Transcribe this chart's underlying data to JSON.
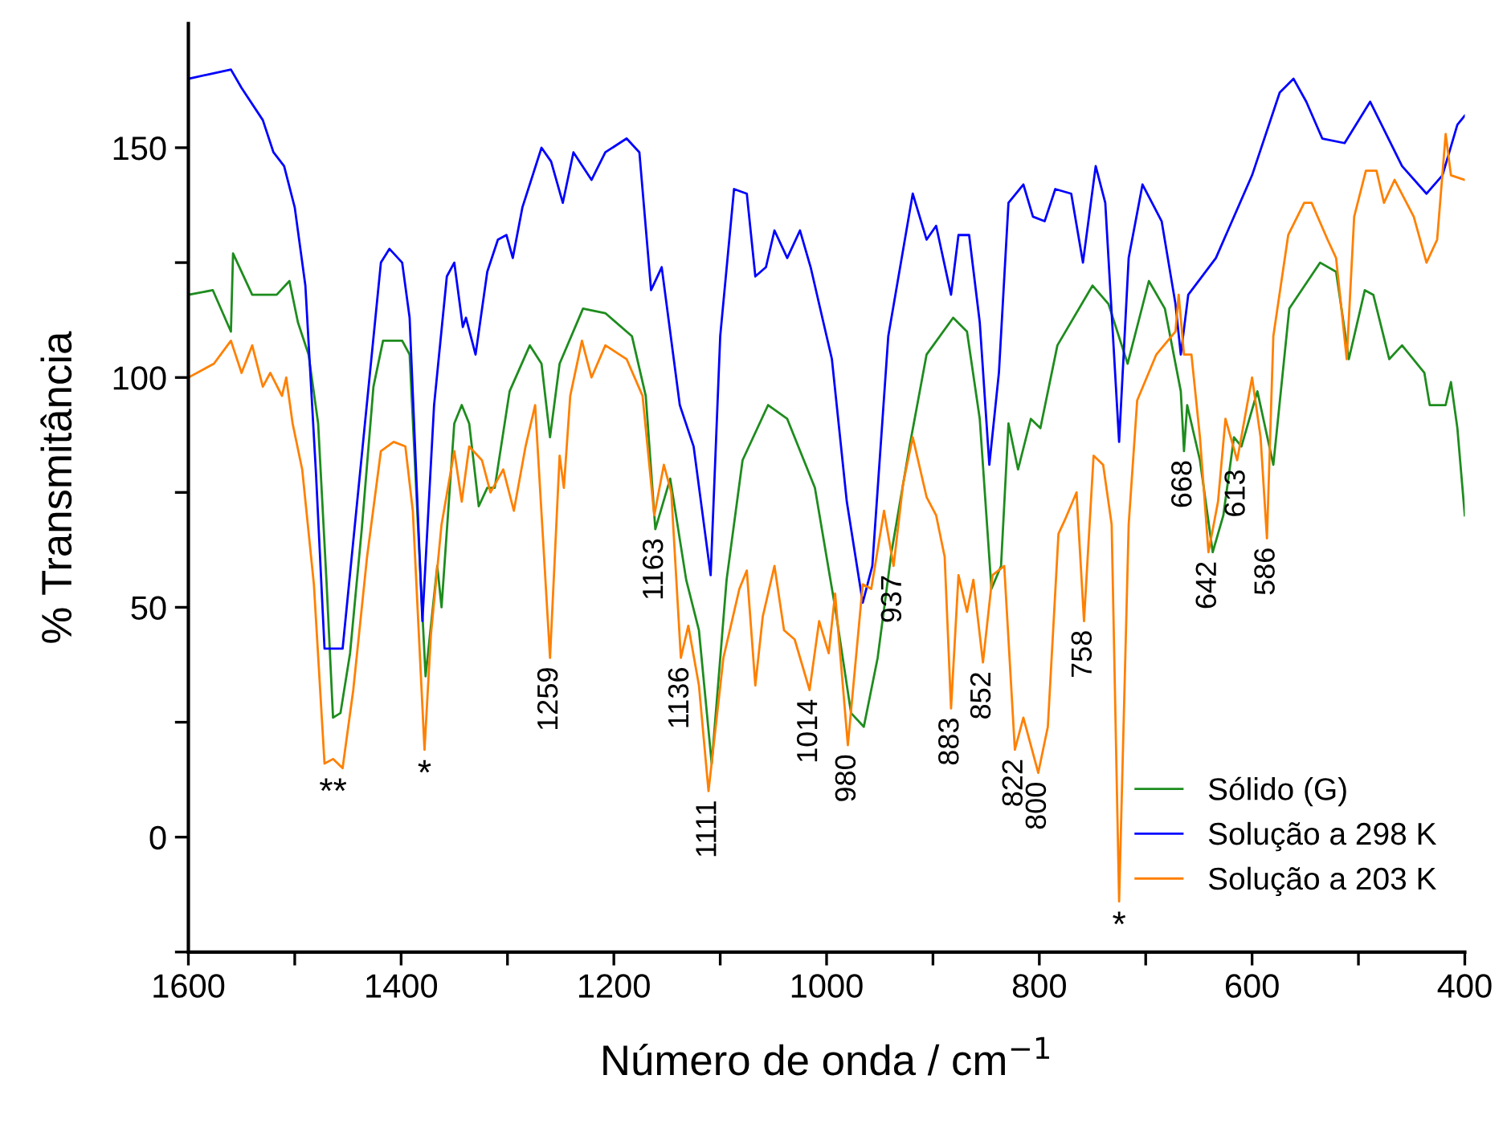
{
  "chart_data": {
    "type": "line",
    "xlabel": "Número de onda / cm$^{−1}$",
    "ylabel": "% Transmitância",
    "xlim": [
      1600,
      400
    ],
    "xticks": [
      1600,
      {
        "value": 1500,
        "label": null
      },
      1400,
      {
        "value": 1300,
        "label": null
      },
      1200,
      {
        "value": 1100,
        "label": null
      },
      1000,
      {
        "value": 900,
        "label": null
      },
      800,
      {
        "value": 700,
        "label": null
      },
      600,
      {
        "value": 500,
        "label": null
      },
      400
    ],
    "ylim": [
      -25,
      177
    ],
    "yticks": [
      {
        "value": -25,
        "label": null
      },
      0,
      {
        "value": 25,
        "label": null
      },
      50,
      {
        "value": 75,
        "label": null
      },
      100,
      {
        "value": 125,
        "label": null
      },
      150
    ],
    "grid": false,
    "legend": "bottom right",
    "marker": "none",
    "line_style": "solid",
    "series": [
      {
        "name": "Sólido (G)",
        "color": "#1e8c1e",
        "x": [
          1600,
          1577,
          1560,
          1558,
          1540,
          1517,
          1505,
          1497,
          1487,
          1478,
          1470,
          1464,
          1457,
          1448,
          1437,
          1426,
          1417,
          1399,
          1392,
          1384,
          1377,
          1366,
          1362,
          1350,
          1343,
          1336,
          1327,
          1319,
          1312,
          1298,
          1279,
          1268,
          1260,
          1251,
          1229,
          1208,
          1183,
          1170,
          1161,
          1147,
          1132,
          1120,
          1108,
          1094,
          1079,
          1055,
          1037,
          1011,
          992,
          977,
          965,
          952,
          939,
          922,
          906,
          881,
          868,
          856,
          845,
          836,
          829,
          820,
          808,
          799,
          783,
          750,
          735,
          717,
          697,
          682,
          667,
          664,
          661,
          649,
          637,
          627,
          617,
          610,
          595,
          580,
          565,
          536,
          521,
          509,
          494,
          486,
          471,
          459,
          438,
          433,
          418,
          413,
          407,
          400
        ],
        "values": [
          118,
          119,
          110,
          127,
          118,
          118,
          121,
          112,
          105,
          90,
          55,
          26,
          27,
          40,
          67,
          98,
          108,
          108,
          105,
          67,
          35,
          59,
          50,
          90,
          94,
          90,
          72,
          76,
          76,
          97,
          107,
          103,
          87,
          103,
          115,
          114,
          109,
          96,
          67,
          78,
          56,
          45,
          16,
          56,
          82,
          94,
          91,
          76,
          50,
          27,
          24,
          39,
          62,
          85,
          105,
          113,
          110,
          91,
          54,
          59,
          90,
          80,
          91,
          89,
          107,
          120,
          116,
          103,
          121,
          115,
          97,
          84,
          94,
          82,
          62,
          70,
          87,
          85,
          97,
          81,
          115,
          125,
          123,
          104,
          119,
          118,
          104,
          107,
          101,
          94,
          94,
          99,
          89,
          70
        ]
      },
      {
        "name": "Solução a 298 K",
        "color": "#0000ff",
        "x": [
          1600,
          1580,
          1560,
          1550,
          1530,
          1520,
          1510,
          1500,
          1490,
          1480,
          1472,
          1455,
          1434,
          1419,
          1411,
          1399,
          1392,
          1380,
          1369,
          1357,
          1350,
          1342,
          1339,
          1330,
          1319,
          1309,
          1301,
          1295,
          1286,
          1268,
          1259,
          1248,
          1238,
          1221,
          1208,
          1188,
          1176,
          1165,
          1155,
          1138,
          1125,
          1109,
          1100,
          1087,
          1075,
          1067,
          1057,
          1049,
          1037,
          1025,
          1015,
          995,
          981,
          966,
          957,
          942,
          919,
          906,
          897,
          883,
          876,
          866,
          856,
          847,
          838,
          829,
          815,
          806,
          795,
          785,
          770,
          759,
          747,
          738,
          725,
          716,
          703,
          685,
          672,
          667,
          660,
          634,
          600,
          574,
          561,
          549,
          534,
          513,
          489,
          459,
          436,
          421,
          407,
          400
        ],
        "values": [
          165,
          166,
          167,
          163,
          156,
          149,
          146,
          137,
          120,
          79,
          41,
          41,
          90,
          125,
          128,
          125,
          113,
          47,
          94,
          122,
          125,
          111,
          113,
          105,
          123,
          130,
          131,
          126,
          137,
          150,
          147,
          138,
          149,
          143,
          149,
          152,
          149,
          119,
          124,
          94,
          85,
          57,
          109,
          141,
          140,
          122,
          124,
          132,
          126,
          132,
          124,
          104,
          73,
          51,
          59,
          109,
          140,
          130,
          133,
          118,
          131,
          131,
          112,
          81,
          101,
          138,
          142,
          135,
          134,
          141,
          140,
          125,
          146,
          138,
          86,
          126,
          142,
          134,
          116,
          105,
          118,
          126,
          144,
          162,
          165,
          160,
          152,
          151,
          160,
          146,
          140,
          144,
          155,
          157
        ]
      },
      {
        "name": "Solução a 203 K",
        "color": "#ff8000",
        "x": [
          1600,
          1576,
          1560,
          1550,
          1540,
          1530,
          1523,
          1512,
          1508,
          1502,
          1493,
          1482,
          1472,
          1464,
          1455,
          1445,
          1432,
          1419,
          1407,
          1396,
          1389,
          1378,
          1372,
          1362,
          1350,
          1343,
          1336,
          1324,
          1316,
          1304,
          1294,
          1283,
          1274,
          1260,
          1251,
          1247,
          1241,
          1230,
          1221,
          1208,
          1188,
          1173,
          1162,
          1153,
          1146,
          1137,
          1130,
          1120,
          1111,
          1097,
          1082,
          1075,
          1067,
          1060,
          1049,
          1040,
          1030,
          1016,
          1007,
          998,
          992,
          980,
          966,
          958,
          946,
          937,
          928,
          919,
          906,
          897,
          889,
          883,
          876,
          868,
          862,
          853,
          844,
          833,
          823,
          815,
          801,
          792,
          782,
          776,
          765,
          758,
          749,
          740,
          732,
          725,
          716,
          708,
          690,
          672,
          669,
          664,
          657,
          649,
          641,
          632,
          625,
          614,
          600,
          592,
          586,
          580,
          566,
          551,
          544,
          529,
          521,
          511,
          504,
          493,
          483,
          476,
          466,
          448,
          436,
          426,
          418,
          413,
          400
        ],
        "values": [
          100,
          103,
          108,
          101,
          107,
          98,
          101,
          96,
          100,
          90,
          80,
          55,
          16,
          17,
          15,
          32,
          61,
          84,
          86,
          85,
          71,
          19,
          44,
          68,
          84,
          73,
          85,
          82,
          75,
          80,
          71,
          85,
          94,
          39,
          83,
          76,
          96,
          108,
          100,
          107,
          104,
          96,
          70,
          81,
          75,
          39,
          46,
          33,
          10,
          39,
          54,
          58,
          33,
          48,
          59,
          45,
          43,
          32,
          47,
          40,
          53,
          20,
          55,
          54,
          71,
          59,
          77,
          87,
          74,
          70,
          61,
          28,
          57,
          49,
          56,
          38,
          57,
          59,
          19,
          26,
          14,
          24,
          66,
          69,
          75,
          47,
          83,
          81,
          68,
          -14,
          68,
          95,
          105,
          110,
          118,
          105,
          105,
          87,
          62,
          73,
          91,
          82,
          100,
          87,
          65,
          109,
          131,
          138,
          138,
          130,
          126,
          104,
          135,
          145,
          145,
          138,
          143,
          135,
          125,
          130,
          153,
          144,
          143
        ]
      }
    ],
    "annotations": [
      {
        "text": "**",
        "x": 1464,
        "y": 15
      },
      {
        "text": "*",
        "x": 1378,
        "y": 19
      },
      {
        "text": "1259",
        "x": 1260,
        "y": 39
      },
      {
        "text": "1163",
        "x": 1161,
        "y": 67
      },
      {
        "text": "1136",
        "x": 1137,
        "y": 39
      },
      {
        "text": "1111",
        "x": 1111,
        "y": 10
      },
      {
        "text": "1014",
        "x": 1016,
        "y": 32
      },
      {
        "text": "980",
        "x": 980,
        "y": 20
      },
      {
        "text": "937",
        "x": 937,
        "y": 59
      },
      {
        "text": "883",
        "x": 883,
        "y": 28
      },
      {
        "text": "852",
        "x": 853,
        "y": 38
      },
      {
        "text": "822",
        "x": 823,
        "y": 19
      },
      {
        "text": "800",
        "x": 801,
        "y": 14
      },
      {
        "text": "758",
        "x": 758,
        "y": 47
      },
      {
        "text": "*",
        "x": 725,
        "y": -14
      },
      {
        "text": "668",
        "x": 664,
        "y": 84
      },
      {
        "text": "642",
        "x": 641,
        "y": 62
      },
      {
        "text": "613",
        "x": 614,
        "y": 82
      },
      {
        "text": "586",
        "x": 586,
        "y": 65
      }
    ]
  }
}
